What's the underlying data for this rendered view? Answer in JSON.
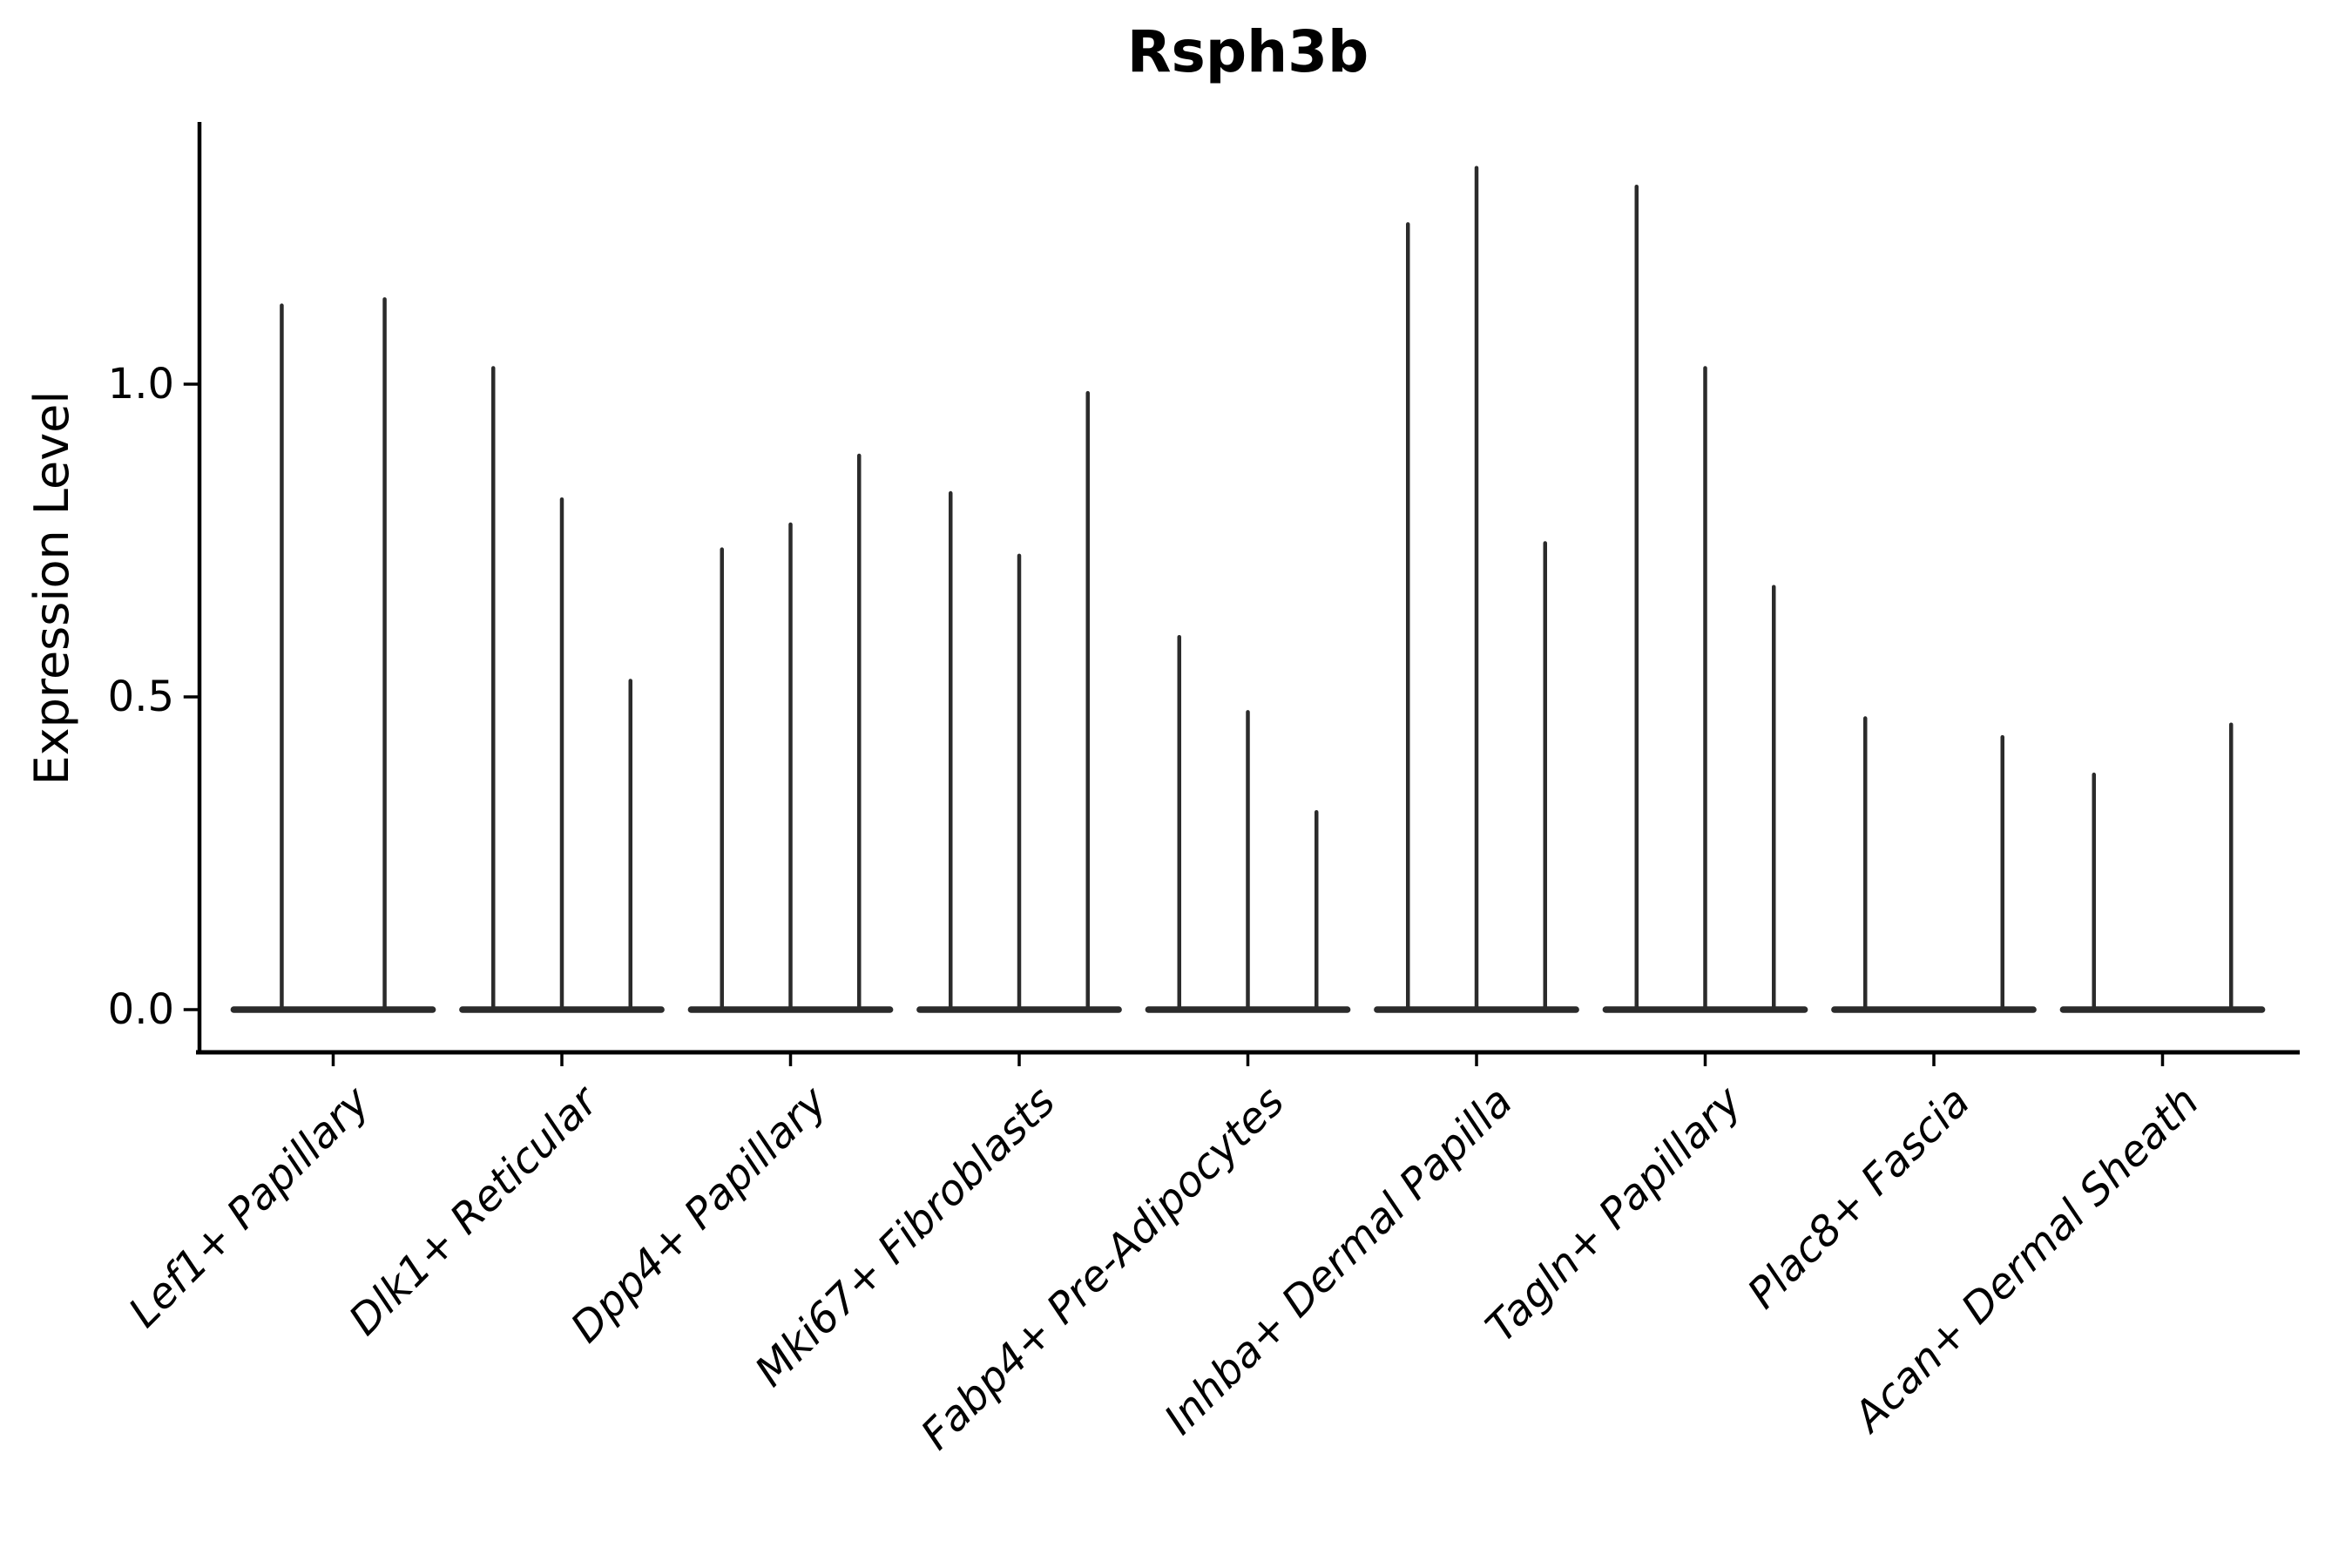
{
  "chart_data": {
    "type": "violin",
    "title": "Rsph3b",
    "xlabel": "",
    "ylabel": "Expression Level",
    "yticks": [
      0.0,
      0.5,
      1.0
    ],
    "ylim": [
      -0.07,
      1.42
    ],
    "grid": false,
    "legend": "none",
    "violin_color": "#2b2b2b",
    "axis_color": "#000000",
    "background_color": "#ffffff",
    "baseline_value": 0.0,
    "group_halfwidth": 0.45,
    "categories": [
      "Lef1+ Papillary",
      "Dlk1+ Reticular",
      "Dpp4+ Papillary",
      "Mki67+ Fibroblasts",
      "Fabp4+ Pre-Adipocytes",
      "Inhba+ Dermal Papilla",
      "Tagln+ Papillary",
      "Plac8+ Fascia",
      "Acan+ Dermal Sheath"
    ],
    "series": [
      {
        "category": "Lef1+ Papillary",
        "violins": [
          {
            "offset": -0.225,
            "max": 1.13
          },
          {
            "offset": 0.225,
            "max": 1.14
          }
        ]
      },
      {
        "category": "Dlk1+ Reticular",
        "violins": [
          {
            "offset": -0.3,
            "max": 1.03
          },
          {
            "offset": 0.0,
            "max": 0.82
          },
          {
            "offset": 0.3,
            "max": 0.53
          }
        ]
      },
      {
        "category": "Dpp4+ Papillary",
        "violins": [
          {
            "offset": -0.3,
            "max": 0.74
          },
          {
            "offset": 0.0,
            "max": 0.78
          },
          {
            "offset": 0.3,
            "max": 0.89
          }
        ]
      },
      {
        "category": "Mki67+ Fibroblasts",
        "violins": [
          {
            "offset": -0.3,
            "max": 0.83
          },
          {
            "offset": 0.0,
            "max": 0.73
          },
          {
            "offset": 0.3,
            "max": 0.99
          }
        ]
      },
      {
        "category": "Fabp4+ Pre-Adipocytes",
        "violins": [
          {
            "offset": -0.3,
            "max": 0.6
          },
          {
            "offset": 0.0,
            "max": 0.48
          },
          {
            "offset": 0.3,
            "max": 0.32
          }
        ]
      },
      {
        "category": "Inhba+ Dermal Papilla",
        "violins": [
          {
            "offset": -0.3,
            "max": 1.26
          },
          {
            "offset": 0.0,
            "max": 1.35
          },
          {
            "offset": 0.3,
            "max": 0.75
          }
        ]
      },
      {
        "category": "Tagln+ Papillary",
        "violins": [
          {
            "offset": -0.3,
            "max": 1.32
          },
          {
            "offset": 0.0,
            "max": 1.03
          },
          {
            "offset": 0.3,
            "max": 0.68
          }
        ]
      },
      {
        "category": "Plac8+ Fascia",
        "violins": [
          {
            "offset": -0.3,
            "max": 0.47
          },
          {
            "offset": 0.3,
            "max": 0.44
          }
        ]
      },
      {
        "category": "Acan+ Dermal Sheath",
        "violins": [
          {
            "offset": -0.3,
            "max": 0.38
          },
          {
            "offset": 0.3,
            "max": 0.46
          }
        ]
      }
    ]
  }
}
